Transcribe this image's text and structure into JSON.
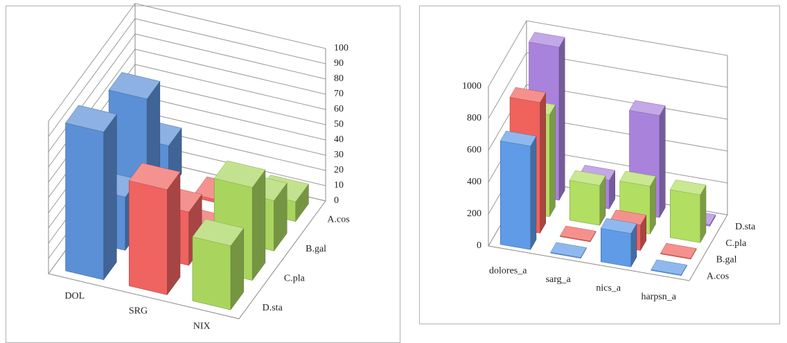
{
  "chart_data": [
    {
      "type": "bar3d",
      "categories": [
        "DOL",
        "SRG",
        "NIX"
      ],
      "depth_categories": [
        "D.sta",
        "C.pla",
        "B.gal",
        "A.cos"
      ],
      "values": [
        [
          97,
          35,
          80,
          30
        ],
        [
          69,
          35,
          2,
          2
        ],
        [
          42,
          61,
          33,
          13
        ]
      ],
      "color_by": "category",
      "colors": [
        "#5b8fd6",
        "#ef6361",
        "#a9d55f"
      ],
      "ylim": [
        0,
        100
      ],
      "yticks": [
        0,
        10,
        20,
        30,
        40,
        50,
        60,
        70,
        80,
        90,
        100
      ],
      "grid": true
    },
    {
      "type": "bar3d",
      "categories": [
        "dolores_a",
        "sarg_a",
        "nics_a",
        "harpsn_a"
      ],
      "depth_categories": [
        "A.cos",
        "B.gal",
        "C.pla",
        "D.sta"
      ],
      "values": [
        [
          650,
          820,
          640,
          960
        ],
        [
          5,
          5,
          250,
          180
        ],
        [
          210,
          160,
          300,
          640
        ],
        [
          5,
          5,
          300,
          10
        ]
      ],
      "color_by": "depth",
      "colors": [
        "#5f9be6",
        "#f0625c",
        "#b2de62",
        "#a982dc"
      ],
      "ylim": [
        0,
        1000
      ],
      "yticks": [
        0,
        200,
        400,
        600,
        800,
        1000
      ],
      "grid": true
    }
  ]
}
